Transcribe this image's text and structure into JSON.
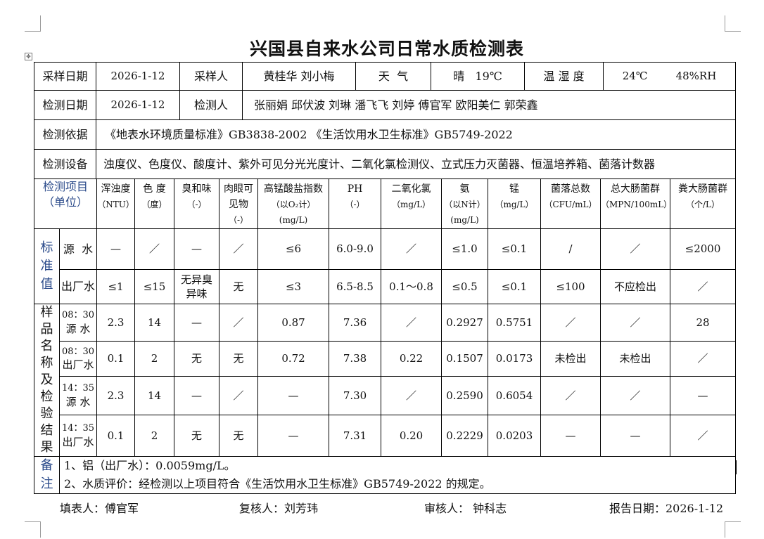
{
  "title": "兴国县自来水公司日常水质检测表",
  "info": {
    "sample_date_label": "采样日期",
    "sample_date": "2026-1-12",
    "sampler_label": "采样人",
    "samplers": "黄桂华 刘小梅",
    "weather_label": "天  气",
    "weather": "晴   19℃",
    "humidity_label": "温 湿 度",
    "temp": "24℃",
    "rh": "48%RH",
    "test_date_label": "检测日期",
    "test_date": "2026-1-12",
    "tester_label": "检测人",
    "testers": "张丽娟 邱伏波 刘琳 潘飞飞 刘婷 傅官军 欧阳美仁 郭荣鑫",
    "basis_label": "检测依据",
    "basis": "《地表水环境质量标准》GB3838-2002  《生活饮用水卫生标准》GB5749-2022",
    "equipment_label": "检测设备",
    "equipment": "浊度仪、色度仪、酸度计、紫外可见分光光度计、二氧化氯检测仪、立式压力灭菌器、恒温培养箱、菌落计数器"
  },
  "header": {
    "item_label": "检测项目",
    "unit_label": "（单位）",
    "columns": [
      [
        "浑浊度",
        "（NTU）"
      ],
      [
        "色 度",
        "（度）"
      ],
      [
        "臭和味",
        "（-）"
      ],
      [
        "肉眼可",
        "见物",
        "（-）"
      ],
      [
        "高锰酸盐指数",
        "（以O₂计）",
        "(mg/L)"
      ],
      [
        "PH",
        "（-）"
      ],
      [
        "二氧化氯",
        "（mg/L）"
      ],
      [
        "氨",
        "（以N计）",
        "(mg/L)"
      ],
      [
        "锰",
        "（mg/L）"
      ],
      [
        "菌落总数",
        "（CFU/mL）"
      ],
      [
        "总大肠菌群",
        "（MPN/100mL）"
      ],
      [
        "粪大肠菌群",
        "（个/L）"
      ]
    ]
  },
  "standard": {
    "label": "标准值",
    "rows": [
      {
        "name": "源  水",
        "values": [
          "—",
          "／",
          "—",
          "／",
          "≤6",
          "6.0-9.0",
          "／",
          "≤1.0",
          "≤0.1",
          "/",
          "／",
          "≤2000"
        ]
      },
      {
        "name": "出厂水",
        "values": [
          "≤1",
          "≤15",
          "无异臭异味",
          "无",
          "≤3",
          "6.5-8.5",
          "0.1～0.8",
          "≤0.5",
          "≤0.1",
          "≤100",
          "不应检出",
          "／"
        ]
      }
    ]
  },
  "results": {
    "label": "样品名称及检验结果",
    "rows": [
      {
        "time": "08：30",
        "name": "源 水",
        "values": [
          "2.3",
          "14",
          "—",
          "／",
          "0.87",
          "7.36",
          "／",
          "0.2927",
          "0.5751",
          "／",
          "／",
          "28"
        ]
      },
      {
        "time": "08：30",
        "name": "出厂水",
        "values": [
          "0.1",
          "2",
          "无",
          "无",
          "0.72",
          "7.38",
          "0.22",
          "0.1507",
          "0.0173",
          "未检出",
          "未检出",
          "／"
        ]
      },
      {
        "time": "14：35",
        "name": "源 水",
        "values": [
          "2.3",
          "14",
          "—",
          "／",
          "—",
          "7.30",
          "／",
          "0.2590",
          "0.6054",
          "／",
          "／",
          "—"
        ]
      },
      {
        "time": "14：35",
        "name": "出厂水",
        "values": [
          "0.1",
          "2",
          "无",
          "无",
          "—",
          "7.31",
          "0.20",
          "0.2229",
          "0.0203",
          "—",
          "—",
          "／"
        ]
      }
    ]
  },
  "notes": {
    "label": "备注",
    "lines": [
      "1、铝（出厂水）：0.0059mg/L。",
      "2、水质评价：经检测以上项目符合《生活饮用水卫生标准》GB5749-2022 的规定。"
    ]
  },
  "footer": {
    "filler": "填表人：傅官军",
    "reviewer": "复核人：刘芳玮",
    "auditor": "审核人： 钟科志",
    "report_date": "报告日期：2026-1-12"
  }
}
